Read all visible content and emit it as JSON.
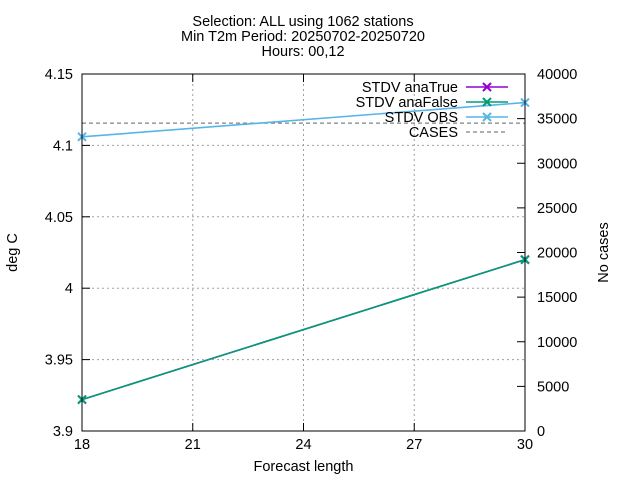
{
  "chart_data": {
    "type": "line",
    "title_lines": [
      "Selection: ALL using  1062 stations",
      "Min T2m   Period: 20250702-20250720",
      "Hours: 00,12"
    ],
    "xlabel": "Forecast length",
    "ylabel": "deg C",
    "y2label": "No cases",
    "x": [
      18,
      30
    ],
    "xlim": [
      18,
      30
    ],
    "ylim": [
      3.9,
      4.15
    ],
    "y2lim": [
      0,
      40000
    ],
    "xticks": [
      18,
      21,
      24,
      27,
      30
    ],
    "yticks": [
      3.9,
      3.95,
      4,
      4.05,
      4.1,
      4.15
    ],
    "y2ticks": [
      0,
      5000,
      10000,
      15000,
      20000,
      25000,
      30000,
      35000,
      40000
    ],
    "grid": true,
    "legend_position": "top-right",
    "series": [
      {
        "name": "STDV anaTrue",
        "axis": "y",
        "color": "#9400d3",
        "marker": "x",
        "dash": false,
        "values": [
          3.922,
          4.02
        ]
      },
      {
        "name": "STDV anaFalse",
        "axis": "y",
        "color": "#009e73",
        "marker": "x",
        "dash": false,
        "values": [
          3.922,
          4.02
        ]
      },
      {
        "name": "STDV OBS",
        "axis": "y",
        "color": "#56b4e9",
        "marker": "x",
        "dash": false,
        "values": [
          4.106,
          4.13
        ]
      },
      {
        "name": "CASES",
        "axis": "y2",
        "color": "#808080",
        "marker": "none",
        "dash": true,
        "values": [
          34500,
          34500
        ]
      }
    ]
  }
}
